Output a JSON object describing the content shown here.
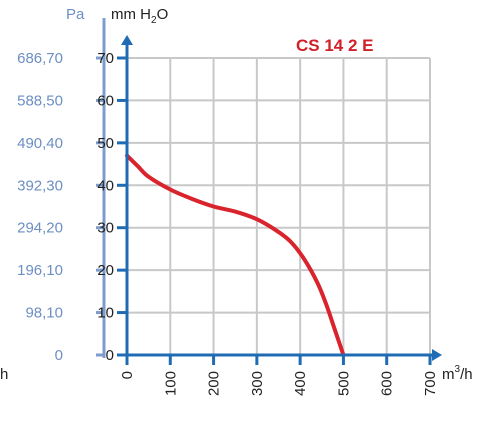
{
  "chart_data": {
    "type": "line",
    "title": "CS 14 2 E",
    "x_axis": {
      "label_base": "m",
      "label_sup": "3",
      "label_tail": "/h",
      "ticks": [
        "0",
        "100",
        "200",
        "300",
        "400",
        "500",
        "600",
        "700"
      ],
      "range": [
        0,
        700
      ]
    },
    "y_axis_right": {
      "label_pre": "mm H",
      "label_sub": "2",
      "label_post": "O",
      "ticks": [
        "0",
        "10",
        "20",
        "30",
        "40",
        "50",
        "60",
        "70"
      ],
      "range": [
        0,
        70
      ]
    },
    "y_axis_left": {
      "label": "Pa",
      "ticks": [
        "0",
        "98,10",
        "196,10",
        "294,20",
        "392,30",
        "490,40",
        "588,50",
        "686,70"
      ]
    },
    "left_fragment": "h",
    "grid": true,
    "series": [
      {
        "x": [
          0,
          25,
          50,
          100,
          150,
          200,
          250,
          300,
          350,
          380,
          410,
          440,
          460,
          480,
          490,
          500
        ],
        "y": [
          47,
          44.5,
          42,
          39,
          36.8,
          35,
          33.8,
          32,
          29,
          26.5,
          22.5,
          17,
          12,
          6,
          3,
          0
        ],
        "color": "#d9232d"
      }
    ],
    "colors": {
      "axis": "#1f6cb4",
      "pa_axis": "#7d9ccc",
      "grid": "#c8c8c8",
      "curve": "#d9232d"
    }
  }
}
